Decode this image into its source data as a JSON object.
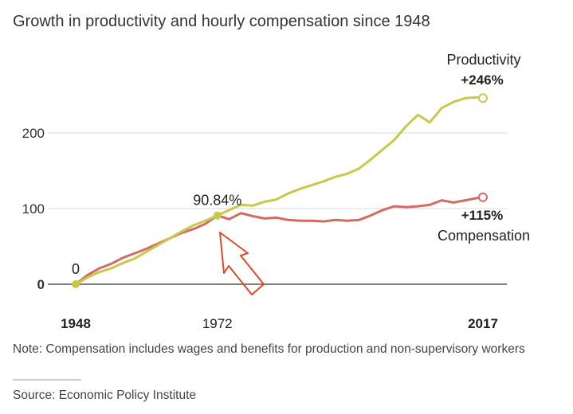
{
  "title": "Growth in productivity and hourly compensation since 1948",
  "note": "Note: Compensation includes wages and benefits for production and non-supervisory workers",
  "source": "Source: Economic Policy Institute",
  "colors": {
    "productivity": "#c8c84a",
    "compensation": "#cf6d64",
    "arrow": "#e0482a",
    "grid": "#d9d9d9",
    "axis": "#555555"
  },
  "chart_data": {
    "type": "line",
    "title": "Growth in productivity and hourly compensation since 1948",
    "xlabel": "",
    "ylabel": "",
    "xlim": [
      1948,
      2017
    ],
    "ylim": [
      0,
      250
    ],
    "y_ticks": [
      0,
      100,
      200
    ],
    "y_tick_labels": [
      "0",
      "100",
      "200"
    ],
    "x_tick_labels": [
      {
        "value": 1948,
        "label": "1948",
        "bold": true
      },
      {
        "value": 1972,
        "label": "1972",
        "bold": false
      },
      {
        "value": 2017,
        "label": "2017",
        "bold": true
      }
    ],
    "grid": true,
    "series": [
      {
        "name": "Productivity",
        "color_key": "productivity",
        "x": [
          1948,
          1950,
          1952,
          1954,
          1956,
          1958,
          1960,
          1962,
          1964,
          1966,
          1968,
          1970,
          1972,
          1974,
          1976,
          1978,
          1980,
          1982,
          1984,
          1986,
          1988,
          1990,
          1992,
          1994,
          1996,
          1998,
          2000,
          2002,
          2004,
          2006,
          2008,
          2010,
          2012,
          2014,
          2016,
          2017
        ],
        "values": [
          0,
          9,
          16,
          21,
          28,
          34,
          43,
          52,
          61,
          70,
          78,
          84,
          91,
          98,
          105,
          104,
          109,
          112,
          120,
          126,
          131,
          136,
          142,
          146,
          153,
          165,
          178,
          191,
          209,
          224,
          214,
          233,
          241,
          246,
          247,
          246
        ],
        "end_label": "Productivity",
        "end_value_label": "+246%"
      },
      {
        "name": "Compensation",
        "color_key": "compensation",
        "x": [
          1948,
          1950,
          1952,
          1954,
          1956,
          1958,
          1960,
          1962,
          1964,
          1966,
          1968,
          1970,
          1972,
          1974,
          1976,
          1978,
          1980,
          1982,
          1984,
          1986,
          1988,
          1990,
          1992,
          1994,
          1996,
          1998,
          2000,
          2002,
          2004,
          2006,
          2008,
          2010,
          2012,
          2014,
          2016,
          2017
        ],
        "values": [
          0,
          12,
          21,
          27,
          35,
          41,
          47,
          54,
          61,
          68,
          73,
          80,
          91,
          86,
          94,
          90,
          87,
          88,
          85,
          84,
          84,
          83,
          85,
          84,
          85,
          91,
          98,
          103,
          102,
          103,
          105,
          111,
          108,
          111,
          114,
          115
        ],
        "end_label": "Compensation",
        "end_value_label": "+115%"
      }
    ],
    "annotations": [
      {
        "x": 1948,
        "y": 0,
        "label": "0"
      },
      {
        "x": 1972,
        "y": 90.84,
        "label": "90.84%"
      }
    ]
  }
}
